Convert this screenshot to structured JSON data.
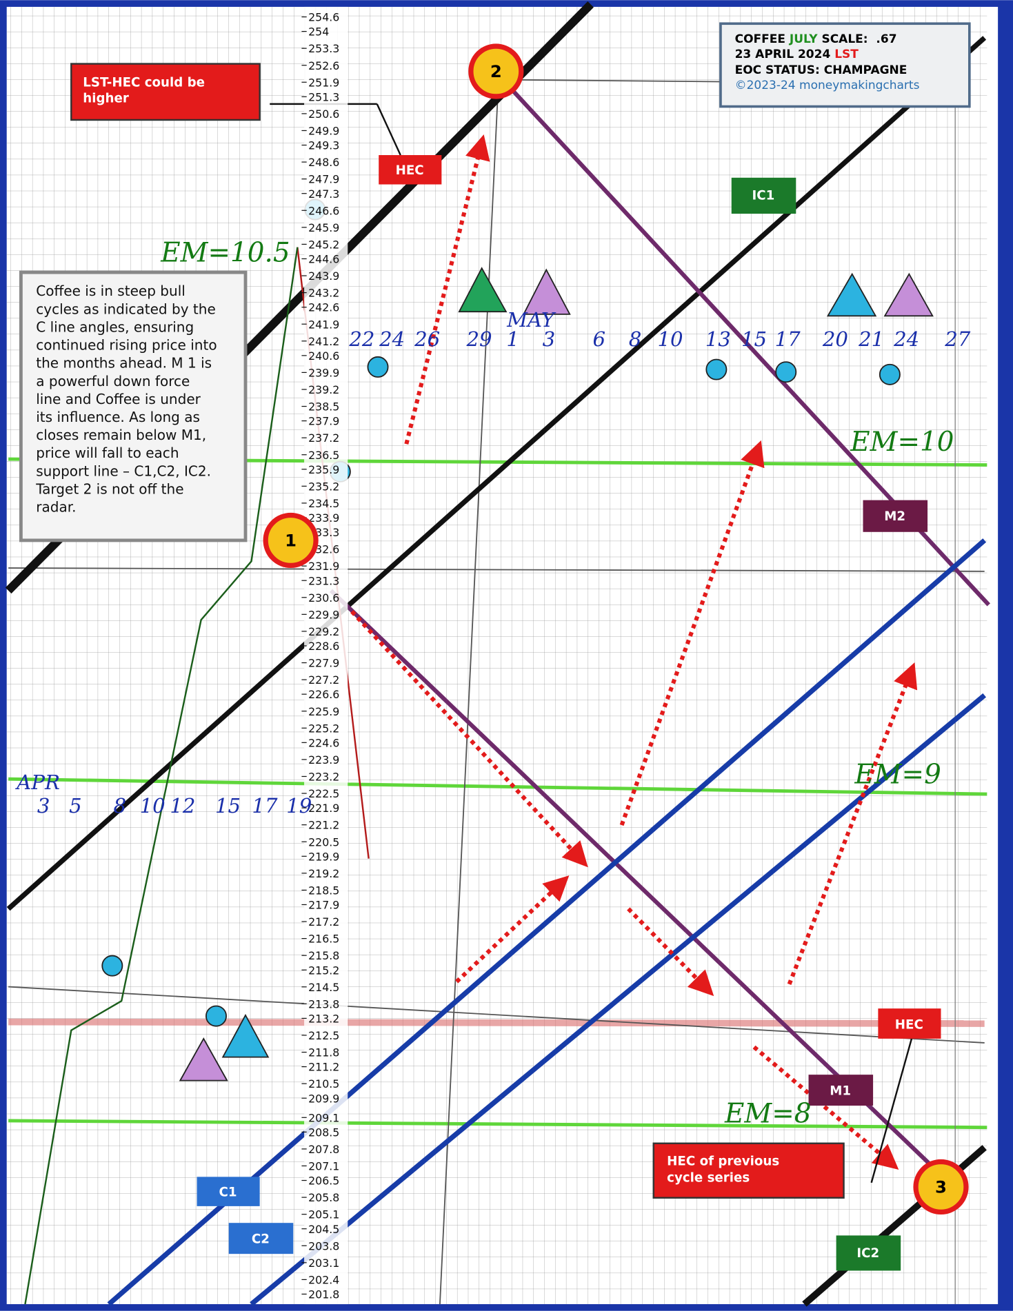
{
  "chart_data": {
    "type": "price-annotated",
    "header": {
      "line1": [
        "COFFEE ",
        "JULY",
        " SCALE:  .67"
      ],
      "line2": [
        "23 APRIL 2024 ",
        "LST"
      ],
      "line3": "EOC STATUS: CHAMPAGNE",
      "line4": "©2023-24 moneymakingcharts"
    },
    "note": [
      "Coffee is in steep bull",
      "cycles as indicated by the",
      "C line angles, ensuring",
      "continued rising price into",
      "the months ahead. M 1 is",
      "a powerful down force",
      "line and Coffee is under",
      "its influence. As long as",
      "closes remain below M1,",
      "price will fall to each",
      "support line – C1,C2, IC2.",
      "Target 2 is not off the",
      "radar."
    ],
    "ylim": [
      201.8,
      254.6
    ],
    "yticks": [
      254.6,
      254.0,
      253.3,
      252.6,
      251.9,
      251.3,
      250.6,
      249.9,
      249.3,
      248.6,
      247.9,
      247.3,
      246.6,
      245.9,
      245.2,
      244.6,
      243.9,
      243.2,
      242.6,
      241.9,
      241.2,
      240.6,
      239.9,
      239.2,
      238.5,
      237.9,
      237.2,
      236.5,
      235.9,
      235.2,
      234.5,
      233.9,
      233.3,
      232.6,
      231.9,
      231.3,
      230.6,
      229.9,
      229.2,
      228.6,
      227.9,
      227.2,
      226.6,
      225.9,
      225.2,
      224.6,
      223.9,
      223.2,
      222.5,
      221.9,
      221.2,
      220.5,
      219.9,
      219.2,
      218.5,
      217.9,
      217.2,
      216.5,
      215.8,
      215.2,
      214.5,
      213.8,
      213.2,
      212.5,
      211.8,
      211.2,
      210.5,
      209.9,
      209.1,
      208.5,
      207.8,
      207.1,
      206.5,
      205.8,
      205.1,
      204.5,
      203.8,
      203.1,
      202.4,
      201.8
    ],
    "months": {
      "apr": "APR",
      "may": "MAY"
    },
    "dates_apr": [
      "3",
      "5",
      "8",
      "10",
      "12",
      "15",
      "17",
      "19"
    ],
    "dates_may": [
      "22",
      "24",
      "26",
      "29",
      "1",
      "3",
      "6",
      "8",
      "10",
      "13",
      "15",
      "17",
      "20",
      "21",
      "24",
      "27"
    ],
    "labels": {
      "lst_hec": [
        "LST-HEC could be",
        "higher"
      ],
      "hec_top": "HEC",
      "ic1": "IC1",
      "m2": "M2",
      "m1": "M1",
      "hec_right": "HEC",
      "hec_prev": [
        "HEC of previous",
        "cycle series"
      ],
      "ic2": "IC2",
      "c1": "C1",
      "c2": "C2",
      "target1": "1",
      "target2": "2",
      "target3": "3"
    },
    "em_labels": [
      "EM=10.5",
      "EM=10",
      "EM=9",
      "EM=8"
    ]
  }
}
